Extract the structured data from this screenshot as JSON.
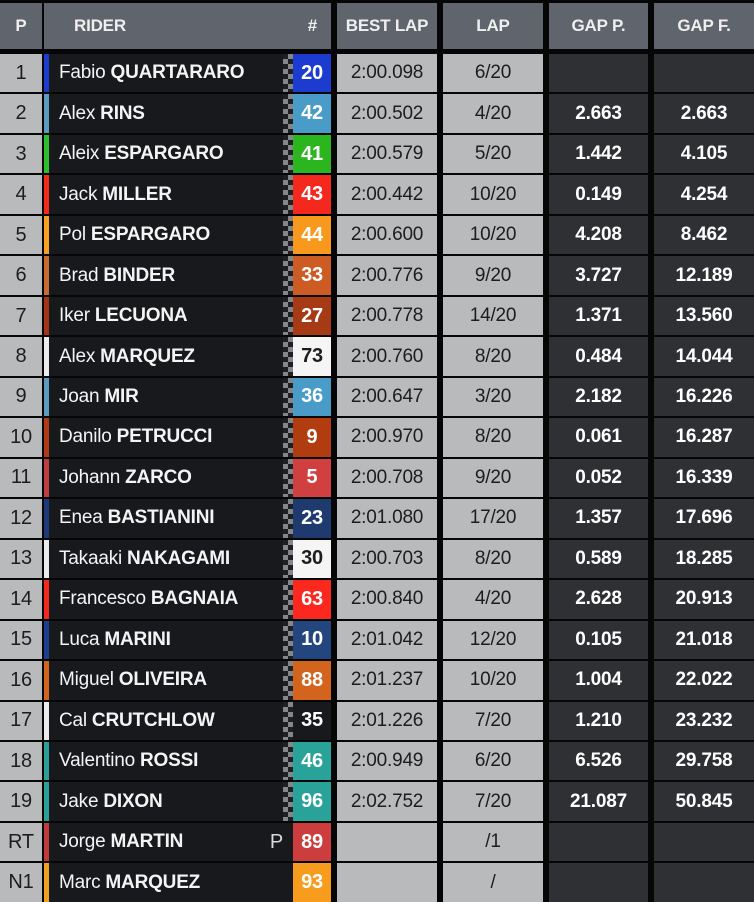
{
  "header": {
    "p": "P",
    "rider": "RIDER",
    "num": "#",
    "best_lap": "BEST LAP",
    "lap": "LAP",
    "gap_p": "GAP P.",
    "gap_f": "GAP F."
  },
  "palette": {
    "header_bg": "#60646c",
    "light_cell_bg": "#b9babc",
    "rider_cell_bg": "#17191c",
    "gap_cell_bg": "#2f3033",
    "border": "#060607"
  },
  "rows": [
    {
      "pos": "1",
      "first": "Fabio",
      "last": "QUARTARARO",
      "flag": "",
      "num": "20",
      "num_bg": "#1c3bcf",
      "num_fg": "#ffffff",
      "stripe": "#1c3bcf",
      "best_lap": "2:00.098",
      "lap": "6/20",
      "gap_p": "",
      "gap_f": "",
      "checker": true
    },
    {
      "pos": "2",
      "first": "Alex",
      "last": "RINS",
      "flag": "",
      "num": "42",
      "num_bg": "#4a9cc8",
      "num_fg": "#ffffff",
      "stripe": "#5b9bc0",
      "best_lap": "2:00.502",
      "lap": "4/20",
      "gap_p": "2.663",
      "gap_f": "2.663",
      "checker": true
    },
    {
      "pos": "3",
      "first": "Aleix",
      "last": "ESPARGARO",
      "flag": "",
      "num": "41",
      "num_bg": "#2bb51e",
      "num_fg": "#ffffff",
      "stripe": "#2bbf2b",
      "best_lap": "2:00.579",
      "lap": "5/20",
      "gap_p": "1.442",
      "gap_f": "4.105",
      "checker": true
    },
    {
      "pos": "4",
      "first": "Jack",
      "last": "MILLER",
      "flag": "",
      "num": "43",
      "num_bg": "#f5281e",
      "num_fg": "#ffffff",
      "stripe": "#f42a1d",
      "best_lap": "2:00.442",
      "lap": "10/20",
      "gap_p": "0.149",
      "gap_f": "4.254",
      "checker": true
    },
    {
      "pos": "5",
      "first": "Pol",
      "last": "ESPARGARO",
      "flag": "",
      "num": "44",
      "num_bg": "#f8991e",
      "num_fg": "#ffffff",
      "stripe": "#f8a022",
      "best_lap": "2:00.600",
      "lap": "10/20",
      "gap_p": "4.208",
      "gap_f": "8.462",
      "checker": true
    },
    {
      "pos": "6",
      "first": "Brad",
      "last": "BINDER",
      "flag": "",
      "num": "33",
      "num_bg": "#cd5c24",
      "num_fg": "#ffffff",
      "stripe": "#c96a2e",
      "best_lap": "2:00.776",
      "lap": "9/20",
      "gap_p": "3.727",
      "gap_f": "12.189",
      "checker": true
    },
    {
      "pos": "7",
      "first": "Iker",
      "last": "LECUONA",
      "flag": "",
      "num": "27",
      "num_bg": "#a63a14",
      "num_fg": "#ffffff",
      "stripe": "#a33417",
      "best_lap": "2:00.778",
      "lap": "14/20",
      "gap_p": "1.371",
      "gap_f": "13.560",
      "checker": true
    },
    {
      "pos": "8",
      "first": "Alex",
      "last": "MARQUEZ",
      "flag": "",
      "num": "73",
      "num_bg": "#f5f5f5",
      "num_fg": "#1d1d1d",
      "stripe": "#ebebeb",
      "best_lap": "2:00.760",
      "lap": "8/20",
      "gap_p": "0.484",
      "gap_f": "14.044",
      "checker": true
    },
    {
      "pos": "9",
      "first": "Joan",
      "last": "MIR",
      "flag": "",
      "num": "36",
      "num_bg": "#4a9cc8",
      "num_fg": "#ffffff",
      "stripe": "#5b9bc0",
      "best_lap": "2:00.647",
      "lap": "3/20",
      "gap_p": "2.182",
      "gap_f": "16.226",
      "checker": true
    },
    {
      "pos": "10",
      "first": "Danilo",
      "last": "PETRUCCI",
      "flag": "",
      "num": "9",
      "num_bg": "#b03c10",
      "num_fg": "#ffffff",
      "stripe": "#b03a16",
      "best_lap": "2:00.970",
      "lap": "8/20",
      "gap_p": "0.061",
      "gap_f": "16.287",
      "checker": true
    },
    {
      "pos": "11",
      "first": "Johann",
      "last": "ZARCO",
      "flag": "",
      "num": "5",
      "num_bg": "#d04040",
      "num_fg": "#ffffff",
      "stripe": "#bd3e3e",
      "best_lap": "2:00.708",
      "lap": "9/20",
      "gap_p": "0.052",
      "gap_f": "16.339",
      "checker": true
    },
    {
      "pos": "12",
      "first": "Enea",
      "last": "BASTIANINI",
      "flag": "",
      "num": "23",
      "num_bg": "#1e3a6e",
      "num_fg": "#ffffff",
      "stripe": "#1e3a78",
      "best_lap": "2:01.080",
      "lap": "17/20",
      "gap_p": "1.357",
      "gap_f": "17.696",
      "checker": true
    },
    {
      "pos": "13",
      "first": "Takaaki",
      "last": "NAKAGAMI",
      "flag": "",
      "num": "30",
      "num_bg": "#f5f5f5",
      "num_fg": "#1d1d1d",
      "stripe": "#ebebeb",
      "best_lap": "2:00.703",
      "lap": "8/20",
      "gap_p": "0.589",
      "gap_f": "18.285",
      "checker": true
    },
    {
      "pos": "14",
      "first": "Francesco",
      "last": "BAGNAIA",
      "flag": "",
      "num": "63",
      "num_bg": "#fa281e",
      "num_fg": "#ffffff",
      "stripe": "#f4281d",
      "best_lap": "2:00.840",
      "lap": "4/20",
      "gap_p": "2.628",
      "gap_f": "20.913",
      "checker": true
    },
    {
      "pos": "15",
      "first": "Luca",
      "last": "MARINI",
      "flag": "",
      "num": "10",
      "num_bg": "#24467e",
      "num_fg": "#ffffff",
      "stripe": "#1e3f8f",
      "best_lap": "2:01.042",
      "lap": "12/20",
      "gap_p": "0.105",
      "gap_f": "21.018",
      "checker": true
    },
    {
      "pos": "16",
      "first": "Miguel",
      "last": "OLIVEIRA",
      "flag": "",
      "num": "88",
      "num_bg": "#d2641e",
      "num_fg": "#ffffff",
      "stripe": "#d2641e",
      "best_lap": "2:01.237",
      "lap": "10/20",
      "gap_p": "1.004",
      "gap_f": "22.022",
      "checker": true
    },
    {
      "pos": "17",
      "first": "Cal",
      "last": "CRUTCHLOW",
      "flag": "",
      "num": "35",
      "num_bg": "#17191c",
      "num_fg": "#ffffff",
      "stripe": "#ebebeb",
      "best_lap": "2:01.226",
      "lap": "7/20",
      "gap_p": "1.210",
      "gap_f": "23.232",
      "checker": true
    },
    {
      "pos": "18",
      "first": "Valentino",
      "last": "ROSSI",
      "flag": "",
      "num": "46",
      "num_bg": "#29a399",
      "num_fg": "#ffffff",
      "stripe": "#2aa198",
      "best_lap": "2:00.949",
      "lap": "6/20",
      "gap_p": "6.526",
      "gap_f": "29.758",
      "checker": true
    },
    {
      "pos": "19",
      "first": "Jake",
      "last": "DIXON",
      "flag": "",
      "num": "96",
      "num_bg": "#29a399",
      "num_fg": "#ffffff",
      "stripe": "#2aa198",
      "best_lap": "2:02.752",
      "lap": "7/20",
      "gap_p": "21.087",
      "gap_f": "50.845",
      "checker": true
    },
    {
      "pos": "RT",
      "first": "Jorge",
      "last": "MARTIN",
      "flag": "P",
      "num": "89",
      "num_bg": "#cc3d3d",
      "num_fg": "#ffffff",
      "stripe": "#c03c3c",
      "best_lap": "",
      "lap": "/1",
      "gap_p": "",
      "gap_f": "",
      "checker": false
    },
    {
      "pos": "N1",
      "first": "Marc",
      "last": "MARQUEZ",
      "flag": "",
      "num": "93",
      "num_bg": "#f89c1e",
      "num_fg": "#ffffff",
      "stripe": "#f0a020",
      "best_lap": "",
      "lap": "/",
      "gap_p": "",
      "gap_f": "",
      "checker": false
    }
  ]
}
